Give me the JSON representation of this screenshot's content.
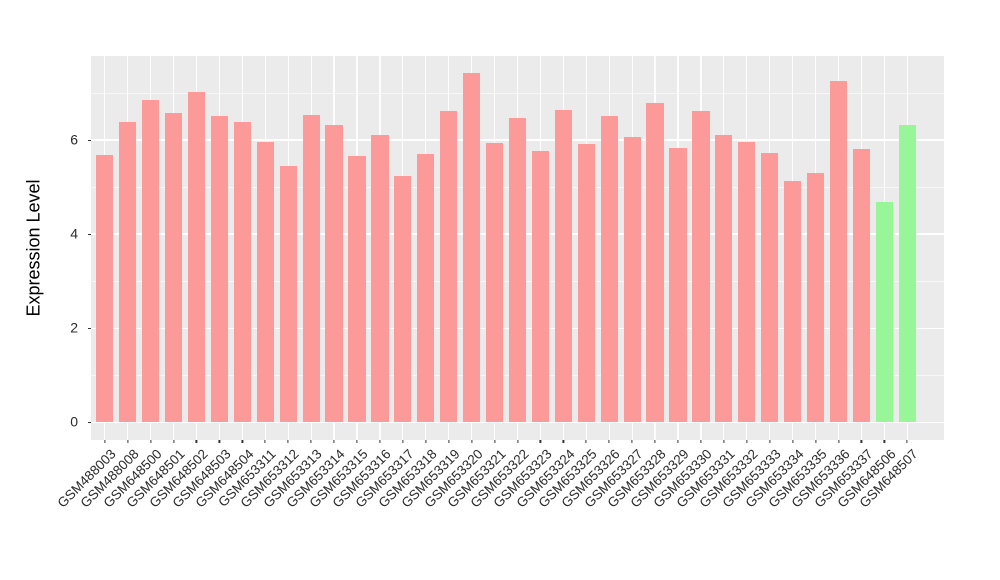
{
  "chart_data": {
    "type": "bar",
    "title": "",
    "xlabel": "",
    "ylabel": "Expression Level",
    "legend": "none",
    "grid": "on",
    "panel_bg": "#EBEBEB",
    "gridline_color": "#FFFFFF",
    "axis_text_color": "#2B2B2B",
    "ylim": [
      -0.375,
      7.79
    ],
    "y_ticks": [
      0,
      2,
      4,
      6
    ],
    "y_tick_labels": [
      "0",
      "2",
      "4",
      "6"
    ],
    "y_minor_gridlines": [
      1,
      3,
      5,
      7
    ],
    "bar_colors": {
      "salmon": "#FB9A99",
      "green": "#98F598"
    },
    "categories": [
      "GSM488003",
      "GSM488008",
      "GSM648500",
      "GSM648501",
      "GSM648502",
      "GSM648503",
      "GSM648504",
      "GSM653311",
      "GSM653312",
      "GSM653313",
      "GSM653314",
      "GSM653315",
      "GSM653316",
      "GSM653317",
      "GSM653318",
      "GSM653319",
      "GSM653320",
      "GSM653321",
      "GSM653322",
      "GSM653323",
      "GSM653324",
      "GSM653325",
      "GSM653326",
      "GSM653327",
      "GSM653328",
      "GSM653329",
      "GSM653330",
      "GSM653331",
      "GSM653332",
      "GSM653333",
      "GSM653334",
      "GSM653335",
      "GSM653336",
      "GSM653337",
      "GSM648506",
      "GSM648507"
    ],
    "values": [
      5.69,
      6.38,
      6.86,
      6.58,
      7.02,
      6.52,
      6.38,
      5.96,
      5.45,
      6.53,
      6.33,
      5.66,
      6.11,
      5.23,
      5.7,
      6.63,
      7.43,
      5.95,
      6.48,
      5.76,
      6.64,
      5.92,
      6.51,
      6.07,
      6.8,
      5.83,
      6.62,
      6.1,
      5.96,
      5.73,
      5.14,
      5.31,
      7.26,
      5.82,
      4.68,
      6.33
    ],
    "groups": [
      "salmon",
      "salmon",
      "salmon",
      "salmon",
      "salmon",
      "salmon",
      "salmon",
      "salmon",
      "salmon",
      "salmon",
      "salmon",
      "salmon",
      "salmon",
      "salmon",
      "salmon",
      "salmon",
      "salmon",
      "salmon",
      "salmon",
      "salmon",
      "salmon",
      "salmon",
      "salmon",
      "salmon",
      "salmon",
      "salmon",
      "salmon",
      "salmon",
      "salmon",
      "salmon",
      "salmon",
      "salmon",
      "salmon",
      "salmon",
      "green",
      "green"
    ]
  }
}
